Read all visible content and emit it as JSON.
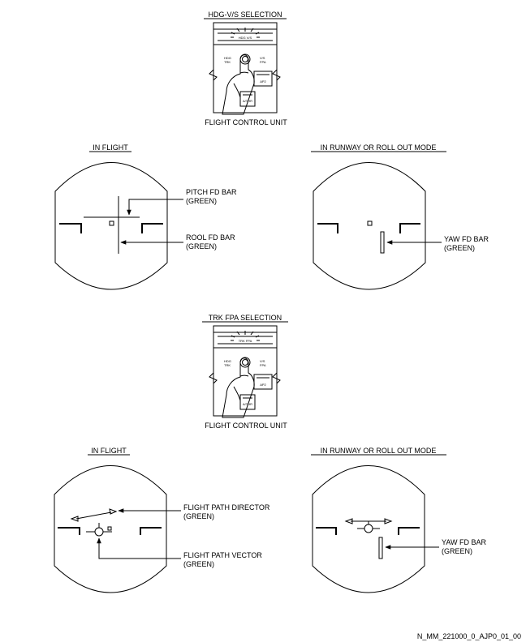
{
  "top_panel": {
    "title": "HDG-V/S SELECTION",
    "caption": "FLIGHT CONTROL UNIT",
    "button_label": "HDG V/S",
    "left_label_1": "HDG",
    "left_label_2": "TRK",
    "right_label_1": "V/S",
    "right_label_2": "FPA",
    "ap2_label": "AP2",
    "athr_label": "A/THR"
  },
  "bottom_panel": {
    "title": "TRK FPA SELECTION",
    "caption": "FLIGHT CONTROL UNIT",
    "button_label": "TRK FPA",
    "left_label_1": "HDG",
    "left_label_2": "TRK",
    "right_label_1": "V/S",
    "right_label_2": "FPA",
    "ap2_label": "AP2",
    "athr_label": "A/THR"
  },
  "display_1": {
    "heading": "IN FLIGHT",
    "label_a_1": "PITCH FD BAR",
    "label_a_2": "(GREEN)",
    "label_b_1": "ROOL FD BAR",
    "label_b_2": "(GREEN)"
  },
  "display_2": {
    "heading": "IN RUNWAY OR ROLL OUT MODE",
    "label_a_1": "YAW FD BAR",
    "label_a_2": "(GREEN)"
  },
  "display_3": {
    "heading": "IN FLIGHT",
    "label_a_1": "FLIGHT PATH DIRECTOR",
    "label_a_2": "(GREEN)",
    "label_b_1": "FLIGHT PATH VECTOR",
    "label_b_2": "(GREEN)"
  },
  "display_4": {
    "heading": "IN RUNWAY OR ROLL OUT MODE",
    "label_a_1": "YAW FD BAR",
    "label_a_2": "(GREEN)"
  },
  "figure_id": "N_MM_221000_0_AJP0_01_00"
}
